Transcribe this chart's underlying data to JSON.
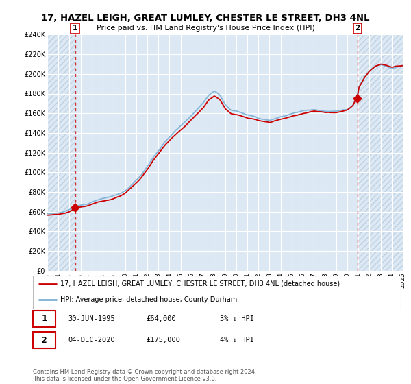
{
  "title_line1": "17, HAZEL LEIGH, GREAT LUMLEY, CHESTER LE STREET, DH3 4NL",
  "title_line2": "Price paid vs. HM Land Registry's House Price Index (HPI)",
  "ylabel_ticks": [
    "£0",
    "£20K",
    "£40K",
    "£60K",
    "£80K",
    "£100K",
    "£120K",
    "£140K",
    "£160K",
    "£180K",
    "£200K",
    "£220K",
    "£240K"
  ],
  "ylim": [
    0,
    240000
  ],
  "sale1_date": 1995.5,
  "sale1_price": 64000,
  "sale1_label": "1",
  "sale1_annotation": "30-JUN-1995",
  "sale1_price_str": "£64,000",
  "sale1_hpi": "3% ↓ HPI",
  "sale2_date": 2020.92,
  "sale2_price": 175000,
  "sale2_label": "2",
  "sale2_annotation": "04-DEC-2020",
  "sale2_price_str": "£175,000",
  "sale2_hpi": "4% ↓ HPI",
  "legend_line1": "17, HAZEL LEIGH, GREAT LUMLEY, CHESTER LE STREET, DH3 4NL (detached house)",
  "legend_line2": "HPI: Average price, detached house, County Durham",
  "footer": "Contains HM Land Registry data © Crown copyright and database right 2024.\nThis data is licensed under the Open Government Licence v3.0.",
  "hpi_color": "#7bafd4",
  "price_color": "#cc0000",
  "bg_color": "#dce9f5",
  "hatch_color": "#c8d8e8",
  "grid_color": "#b8cfe0"
}
